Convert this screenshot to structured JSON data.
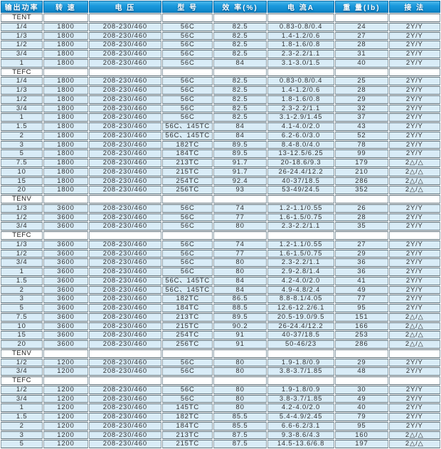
{
  "colors": {
    "header_blue": "#1b9ade",
    "header_blue_dark": "#0d84c6",
    "row_light_blue": "#d9ecf7",
    "section_row_white": "#ffffff",
    "grid_line": "#5e6f78",
    "text": "#333333",
    "header_text": "#ffffff"
  },
  "table": {
    "columns": [
      "输出功率",
      "转 速",
      "电 压",
      "型 号",
      "效 率(%)",
      "电 流A",
      "重 量(lb)",
      "接 法"
    ],
    "sections": [
      {
        "label": "TENT",
        "rows": [
          [
            "1/4",
            "1800",
            "208-230/460",
            "56C",
            "82.5",
            "0.83-0.8/0.4",
            "24",
            "2Y/Y"
          ],
          [
            "1/3",
            "1800",
            "208-230/460",
            "56C",
            "82.5",
            "1.4-1.2/0.6",
            "27",
            "2Y/Y"
          ],
          [
            "1/2",
            "1800",
            "208-230/460",
            "56C",
            "82.5",
            "1.8-1.6/0.8",
            "28",
            "2Y/Y"
          ],
          [
            "3/4",
            "1800",
            "208-230/460",
            "56C",
            "82.5",
            "2.3-2.2/1.1",
            "31",
            "2Y/Y"
          ],
          [
            "1",
            "1800",
            "208-230/460",
            "56C",
            "84",
            "3.1-3.0/1.5",
            "40",
            "2Y/Y"
          ]
        ]
      },
      {
        "label": "TEFC",
        "rows": [
          [
            "1/4",
            "1800",
            "208-230/460",
            "56C",
            "82.5",
            "0.83-0.8/0.4",
            "25",
            "2Y/Y"
          ],
          [
            "1/3",
            "1800",
            "208-230/460",
            "56C",
            "82.5",
            "1.4-1.2/0.6",
            "28",
            "2Y/Y"
          ],
          [
            "1/2",
            "1800",
            "208-230/460",
            "56C",
            "82.5",
            "1.8-1.6/0.8",
            "29",
            "2Y/Y"
          ],
          [
            "3/4",
            "1800",
            "208-230/460",
            "56C",
            "82.5",
            "2.3-2.2/1.1",
            "32",
            "2Y/Y"
          ],
          [
            "1",
            "1800",
            "208-230/460",
            "56C",
            "82.5",
            "3.1-2.9/1.45",
            "37",
            "2Y/Y"
          ],
          [
            "1.5",
            "1800",
            "208-230/460",
            "56C、145TC",
            "84",
            "4.1-4.0/2.0",
            "43",
            "2Y/Y"
          ],
          [
            "2",
            "1800",
            "208-230/460",
            "56C、145TC",
            "84",
            "6.2-6.0/3.0",
            "52",
            "2Y/Y"
          ],
          [
            "3",
            "1800",
            "208-230/460",
            "182TC",
            "89.5",
            "8.4-8.0/4.0",
            "78",
            "2Y/Y"
          ],
          [
            "5",
            "1800",
            "208-230/460",
            "184TC",
            "89.5",
            "13-12.5/6.25",
            "99",
            "2Y/Y"
          ],
          [
            "7.5",
            "1800",
            "208-230/460",
            "213TC",
            "91.7",
            "20-18.6/9.3",
            "179",
            "2△/△"
          ],
          [
            "10",
            "1800",
            "208-230/460",
            "215TC",
            "91.7",
            "26-24.4/12.2",
            "210",
            "2△/△"
          ],
          [
            "15",
            "1800",
            "208-230/460",
            "254TC",
            "92.4",
            "40-37/18.5",
            "286",
            "2△/△"
          ],
          [
            "20",
            "1800",
            "208-230/460",
            "256TC",
            "93",
            "53-49/24.5",
            "352",
            "2△/△"
          ]
        ]
      },
      {
        "label": "TENV",
        "rows": [
          [
            "1/3",
            "3600",
            "208-230/460",
            "56C",
            "74",
            "1.2-1.1/0.55",
            "26",
            "2Y/Y"
          ],
          [
            "1/2",
            "3600",
            "208-230/460",
            "56C",
            "77",
            "1.6-1.5/0.75",
            "28",
            "2Y/Y"
          ],
          [
            "3/4",
            "3600",
            "208-230/460",
            "56C",
            "80",
            "2.3-2.2/1.1",
            "35",
            "2Y/Y"
          ]
        ]
      },
      {
        "label": "TEFC",
        "rows": [
          [
            "1/3",
            "3600",
            "208-230/460",
            "56C",
            "74",
            "1.2-1.1/0.55",
            "27",
            "2Y/Y"
          ],
          [
            "1/2",
            "3600",
            "208-230/460",
            "56C",
            "77",
            "1.6-1.5/0.75",
            "29",
            "2Y/Y"
          ],
          [
            "3/4",
            "3600",
            "208-230/460",
            "56C",
            "80",
            "2.3-2.2/1.1",
            "36",
            "2Y/Y"
          ],
          [
            "1",
            "3600",
            "208-230/460",
            "56C",
            "80",
            "2.9-2.8/1.4",
            "36",
            "2Y/Y"
          ],
          [
            "1.5",
            "3600",
            "208-230/460",
            "56C、145TC",
            "84",
            "4.2-4.0/2.0",
            "41",
            "2Y/Y"
          ],
          [
            "2",
            "3600",
            "208-230/460",
            "56C、145TC",
            "84",
            "4.9-4.8/2.4",
            "49",
            "2Y/Y"
          ],
          [
            "3",
            "3600",
            "208-230/460",
            "182TC",
            "86.5",
            "8.8-8.1/4.05",
            "77",
            "2Y/Y"
          ],
          [
            "5",
            "3600",
            "208-230/460",
            "184TC",
            "88.5",
            "12.6-12.2/6.1",
            "95",
            "2Y/Y"
          ],
          [
            "7.5",
            "3600",
            "208-230/460",
            "213TC",
            "89.5",
            "20.5-19.0/9.5",
            "151",
            "2△/△"
          ],
          [
            "10",
            "3600",
            "208-230/460",
            "215TC",
            "90.2",
            "26-24.4/12.2",
            "166",
            "2△/△"
          ],
          [
            "15",
            "3600",
            "208-230/460",
            "254TC",
            "91",
            "40-37/18.5",
            "253",
            "2△/△"
          ],
          [
            "20",
            "3600",
            "208-230/460",
            "256TC",
            "91",
            "50-46/23",
            "286",
            "2△/△"
          ]
        ]
      },
      {
        "label": "TENV",
        "rows": [
          [
            "1/2",
            "1200",
            "208-230/460",
            "56C",
            "80",
            "1.9-1.8/0.9",
            "29",
            "2Y/Y"
          ],
          [
            "3/4",
            "1200",
            "208-230/460",
            "56C",
            "80",
            "3.8-3.7/1.85",
            "48",
            "2Y/Y"
          ]
        ]
      },
      {
        "label": "TEFC",
        "rows": [
          [
            "1/2",
            "1200",
            "208-230/460",
            "56C",
            "80",
            "1.9-1.8/0.9",
            "30",
            "2Y/Y"
          ],
          [
            "3/4",
            "1200",
            "208-230/460",
            "56C",
            "80",
            "3.8-3.7/1.85",
            "49",
            "2Y/Y"
          ],
          [
            "1",
            "1200",
            "208-230/460",
            "145TC",
            "80",
            "4.2-4.0/2.0",
            "40",
            "2Y/Y"
          ],
          [
            "1.5",
            "1200",
            "208-230/460",
            "182TC",
            "85.5",
            "5.4-4.9/2.45",
            "79",
            "2Y/Y"
          ],
          [
            "2",
            "1200",
            "208-230/460",
            "184TC",
            "85.5",
            "6.6-6.2/3.1",
            "95",
            "2Y/Y"
          ],
          [
            "3",
            "1200",
            "208-230/460",
            "213TC",
            "87.5",
            "9.3-8.6/4.3",
            "160",
            "2△/△"
          ],
          [
            "5",
            "1200",
            "208-230/460",
            "215TC",
            "87.5",
            "14.5-13.6/6.8",
            "197",
            "2△/△"
          ]
        ]
      }
    ]
  }
}
